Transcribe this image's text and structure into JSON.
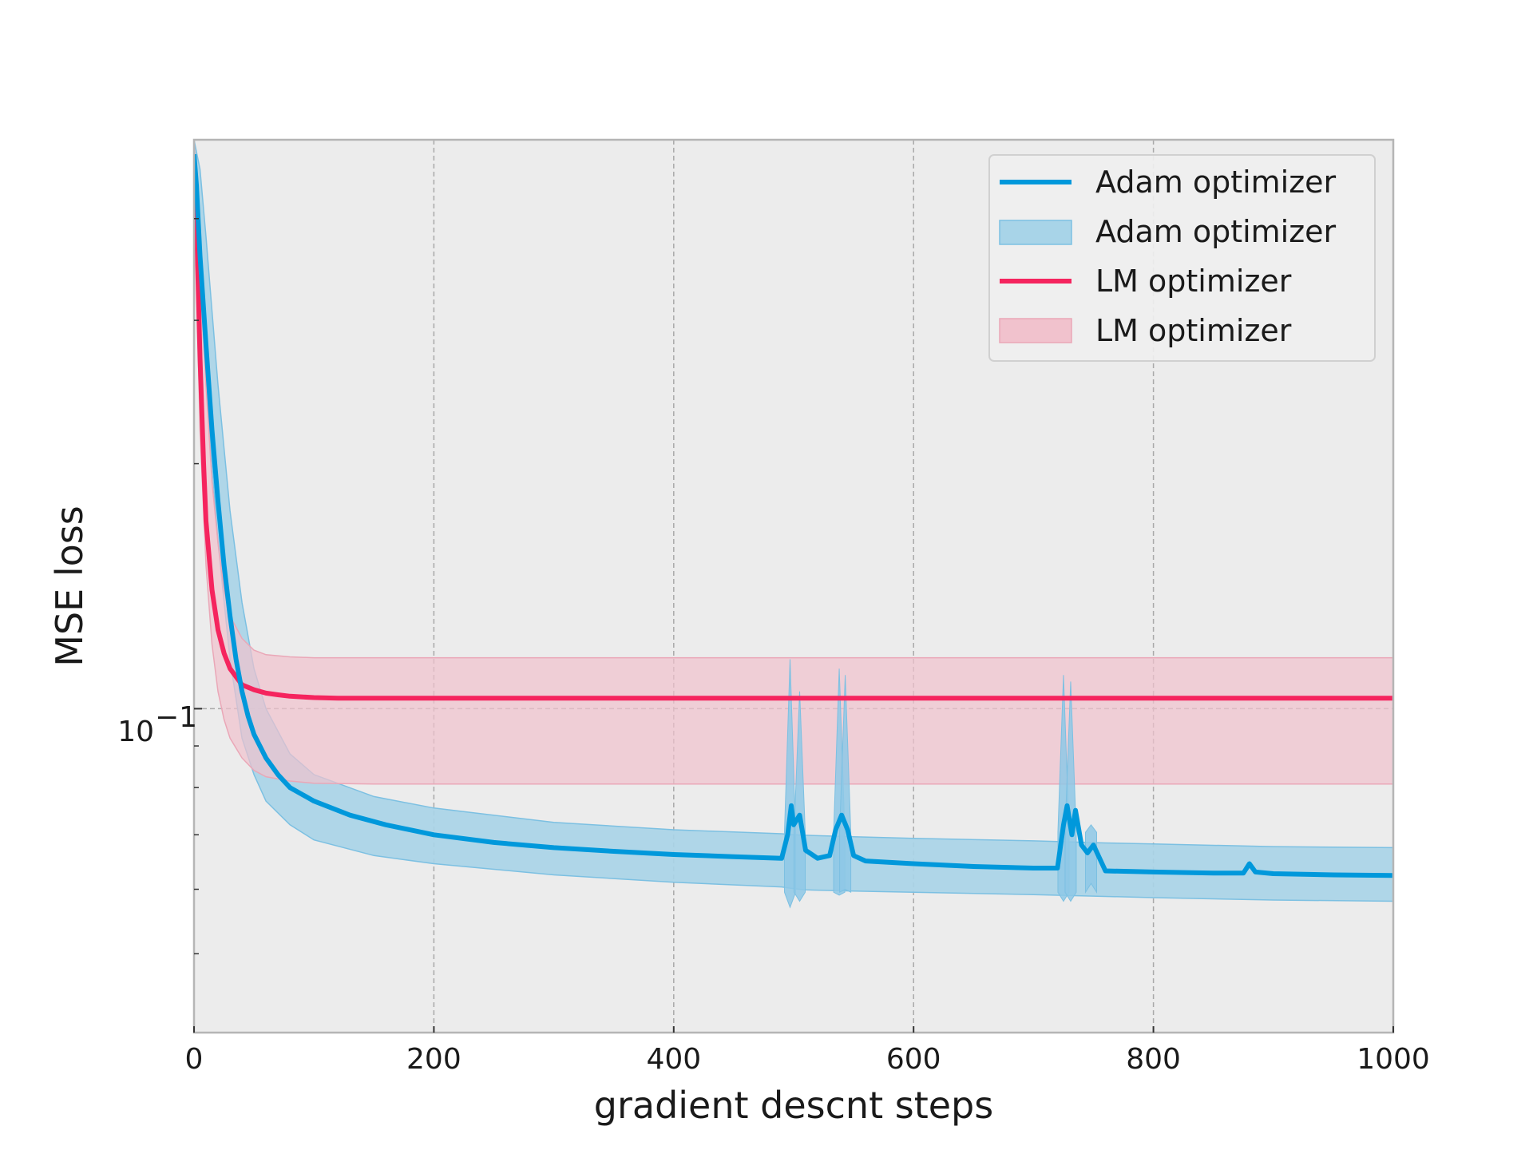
{
  "chart_data": {
    "type": "line",
    "title": "",
    "xlabel": "gradient descnt steps",
    "ylabel": "MSE loss",
    "xlim": [
      0,
      1000
    ],
    "ylim": [
      0.04,
      0.5
    ],
    "yscale": "log",
    "grid": "vertical, on x major ticks",
    "legend_position": "top-right",
    "x_ticks": [
      0,
      200,
      400,
      600,
      800,
      1000
    ],
    "x_tick_labels": [
      "0",
      "200",
      "400",
      "600",
      "800",
      "1000"
    ],
    "y_ticks": [
      0.1
    ],
    "y_tick_labels": [
      "10",
      "−1"
    ],
    "colors": {
      "adam": "#0098db",
      "adam_band": "#a8d4e8",
      "lm": "#f5245e",
      "lm_band": "#f1c2cd",
      "plot_background": "#ececec"
    },
    "series": [
      {
        "name": "Adam optimizer",
        "kind": "mean-line",
        "color": "#0098db",
        "x": [
          0,
          2,
          5,
          10,
          15,
          20,
          25,
          30,
          35,
          40,
          45,
          50,
          60,
          70,
          80,
          100,
          130,
          160,
          200,
          250,
          300,
          350,
          400,
          450,
          490,
          495,
          498,
          500,
          505,
          510,
          520,
          530,
          535,
          540,
          545,
          550,
          560,
          600,
          650,
          700,
          720,
          725,
          728,
          732,
          735,
          740,
          745,
          750,
          760,
          800,
          850,
          875,
          880,
          885,
          900,
          950,
          1000
        ],
        "y": [
          0.48,
          0.44,
          0.36,
          0.28,
          0.22,
          0.18,
          0.15,
          0.13,
          0.115,
          0.105,
          0.098,
          0.093,
          0.087,
          0.083,
          0.08,
          0.077,
          0.074,
          0.072,
          0.07,
          0.0685,
          0.0675,
          0.0668,
          0.0662,
          0.0658,
          0.0655,
          0.07,
          0.076,
          0.072,
          0.074,
          0.067,
          0.0655,
          0.066,
          0.071,
          0.074,
          0.071,
          0.066,
          0.065,
          0.0645,
          0.064,
          0.0637,
          0.0637,
          0.072,
          0.076,
          0.07,
          0.075,
          0.068,
          0.0665,
          0.068,
          0.0632,
          0.063,
          0.0628,
          0.0628,
          0.0645,
          0.063,
          0.0627,
          0.0625,
          0.0624
        ]
      },
      {
        "name": "Adam optimizer",
        "kind": "band",
        "color": "#a8d4e8",
        "x": [
          0,
          5,
          10,
          20,
          30,
          40,
          50,
          60,
          80,
          100,
          150,
          200,
          300,
          400,
          490,
          500,
          510,
          550,
          600,
          700,
          760,
          800,
          900,
          1000
        ],
        "y_lower": [
          0.46,
          0.33,
          0.25,
          0.16,
          0.115,
          0.092,
          0.083,
          0.077,
          0.072,
          0.069,
          0.066,
          0.0645,
          0.0625,
          0.0612,
          0.0604,
          0.0601,
          0.0599,
          0.0597,
          0.0595,
          0.0591,
          0.0588,
          0.0586,
          0.0582,
          0.058
        ],
        "y_upper": [
          0.5,
          0.46,
          0.38,
          0.25,
          0.175,
          0.135,
          0.112,
          0.1,
          0.088,
          0.083,
          0.078,
          0.0755,
          0.0725,
          0.071,
          0.0702,
          0.07,
          0.0699,
          0.0696,
          0.0693,
          0.0688,
          0.0684,
          0.0682,
          0.0677,
          0.0675
        ]
      },
      {
        "name": "LM optimizer",
        "kind": "mean-line",
        "color": "#f5245e",
        "x": [
          0,
          2,
          5,
          8,
          10,
          15,
          20,
          25,
          30,
          40,
          50,
          60,
          70,
          80,
          100,
          120,
          150,
          200,
          300,
          400,
          600,
          800,
          1000
        ],
        "y": [
          0.48,
          0.4,
          0.27,
          0.2,
          0.17,
          0.14,
          0.125,
          0.117,
          0.112,
          0.107,
          0.1055,
          0.1045,
          0.104,
          0.1036,
          0.1032,
          0.103,
          0.103,
          0.103,
          0.103,
          0.103,
          0.103,
          0.103,
          0.103
        ]
      },
      {
        "name": "LM optimizer",
        "kind": "band",
        "color": "#f1c2cd",
        "x": [
          0,
          5,
          10,
          15,
          20,
          25,
          30,
          40,
          50,
          60,
          80,
          100,
          150,
          200,
          300,
          400,
          600,
          800,
          1000
        ],
        "y_lower": [
          0.46,
          0.22,
          0.15,
          0.12,
          0.105,
          0.097,
          0.092,
          0.087,
          0.084,
          0.0825,
          0.0815,
          0.081,
          0.0808,
          0.0808,
          0.0808,
          0.0808,
          0.0808,
          0.0808,
          0.0808
        ],
        "y_upper": [
          0.5,
          0.36,
          0.25,
          0.19,
          0.16,
          0.14,
          0.13,
          0.122,
          0.118,
          0.1165,
          0.1158,
          0.1155,
          0.1155,
          0.1155,
          0.1155,
          0.1155,
          0.1155,
          0.1155,
          0.1155
        ]
      }
    ],
    "spikes": [
      {
        "series": "Adam optimizer",
        "x": 497,
        "y_lower": 0.057,
        "y_upper": 0.115
      },
      {
        "series": "Adam optimizer",
        "x": 505,
        "y_lower": 0.058,
        "y_upper": 0.105
      },
      {
        "series": "Adam optimizer",
        "x": 538,
        "y_lower": 0.059,
        "y_upper": 0.112
      },
      {
        "series": "Adam optimizer",
        "x": 543,
        "y_lower": 0.06,
        "y_upper": 0.11
      },
      {
        "series": "Adam optimizer",
        "x": 725,
        "y_lower": 0.058,
        "y_upper": 0.11
      },
      {
        "series": "Adam optimizer",
        "x": 731,
        "y_lower": 0.058,
        "y_upper": 0.108
      },
      {
        "series": "Adam optimizer",
        "x": 748,
        "y_lower": 0.061,
        "y_upper": 0.072
      }
    ]
  }
}
